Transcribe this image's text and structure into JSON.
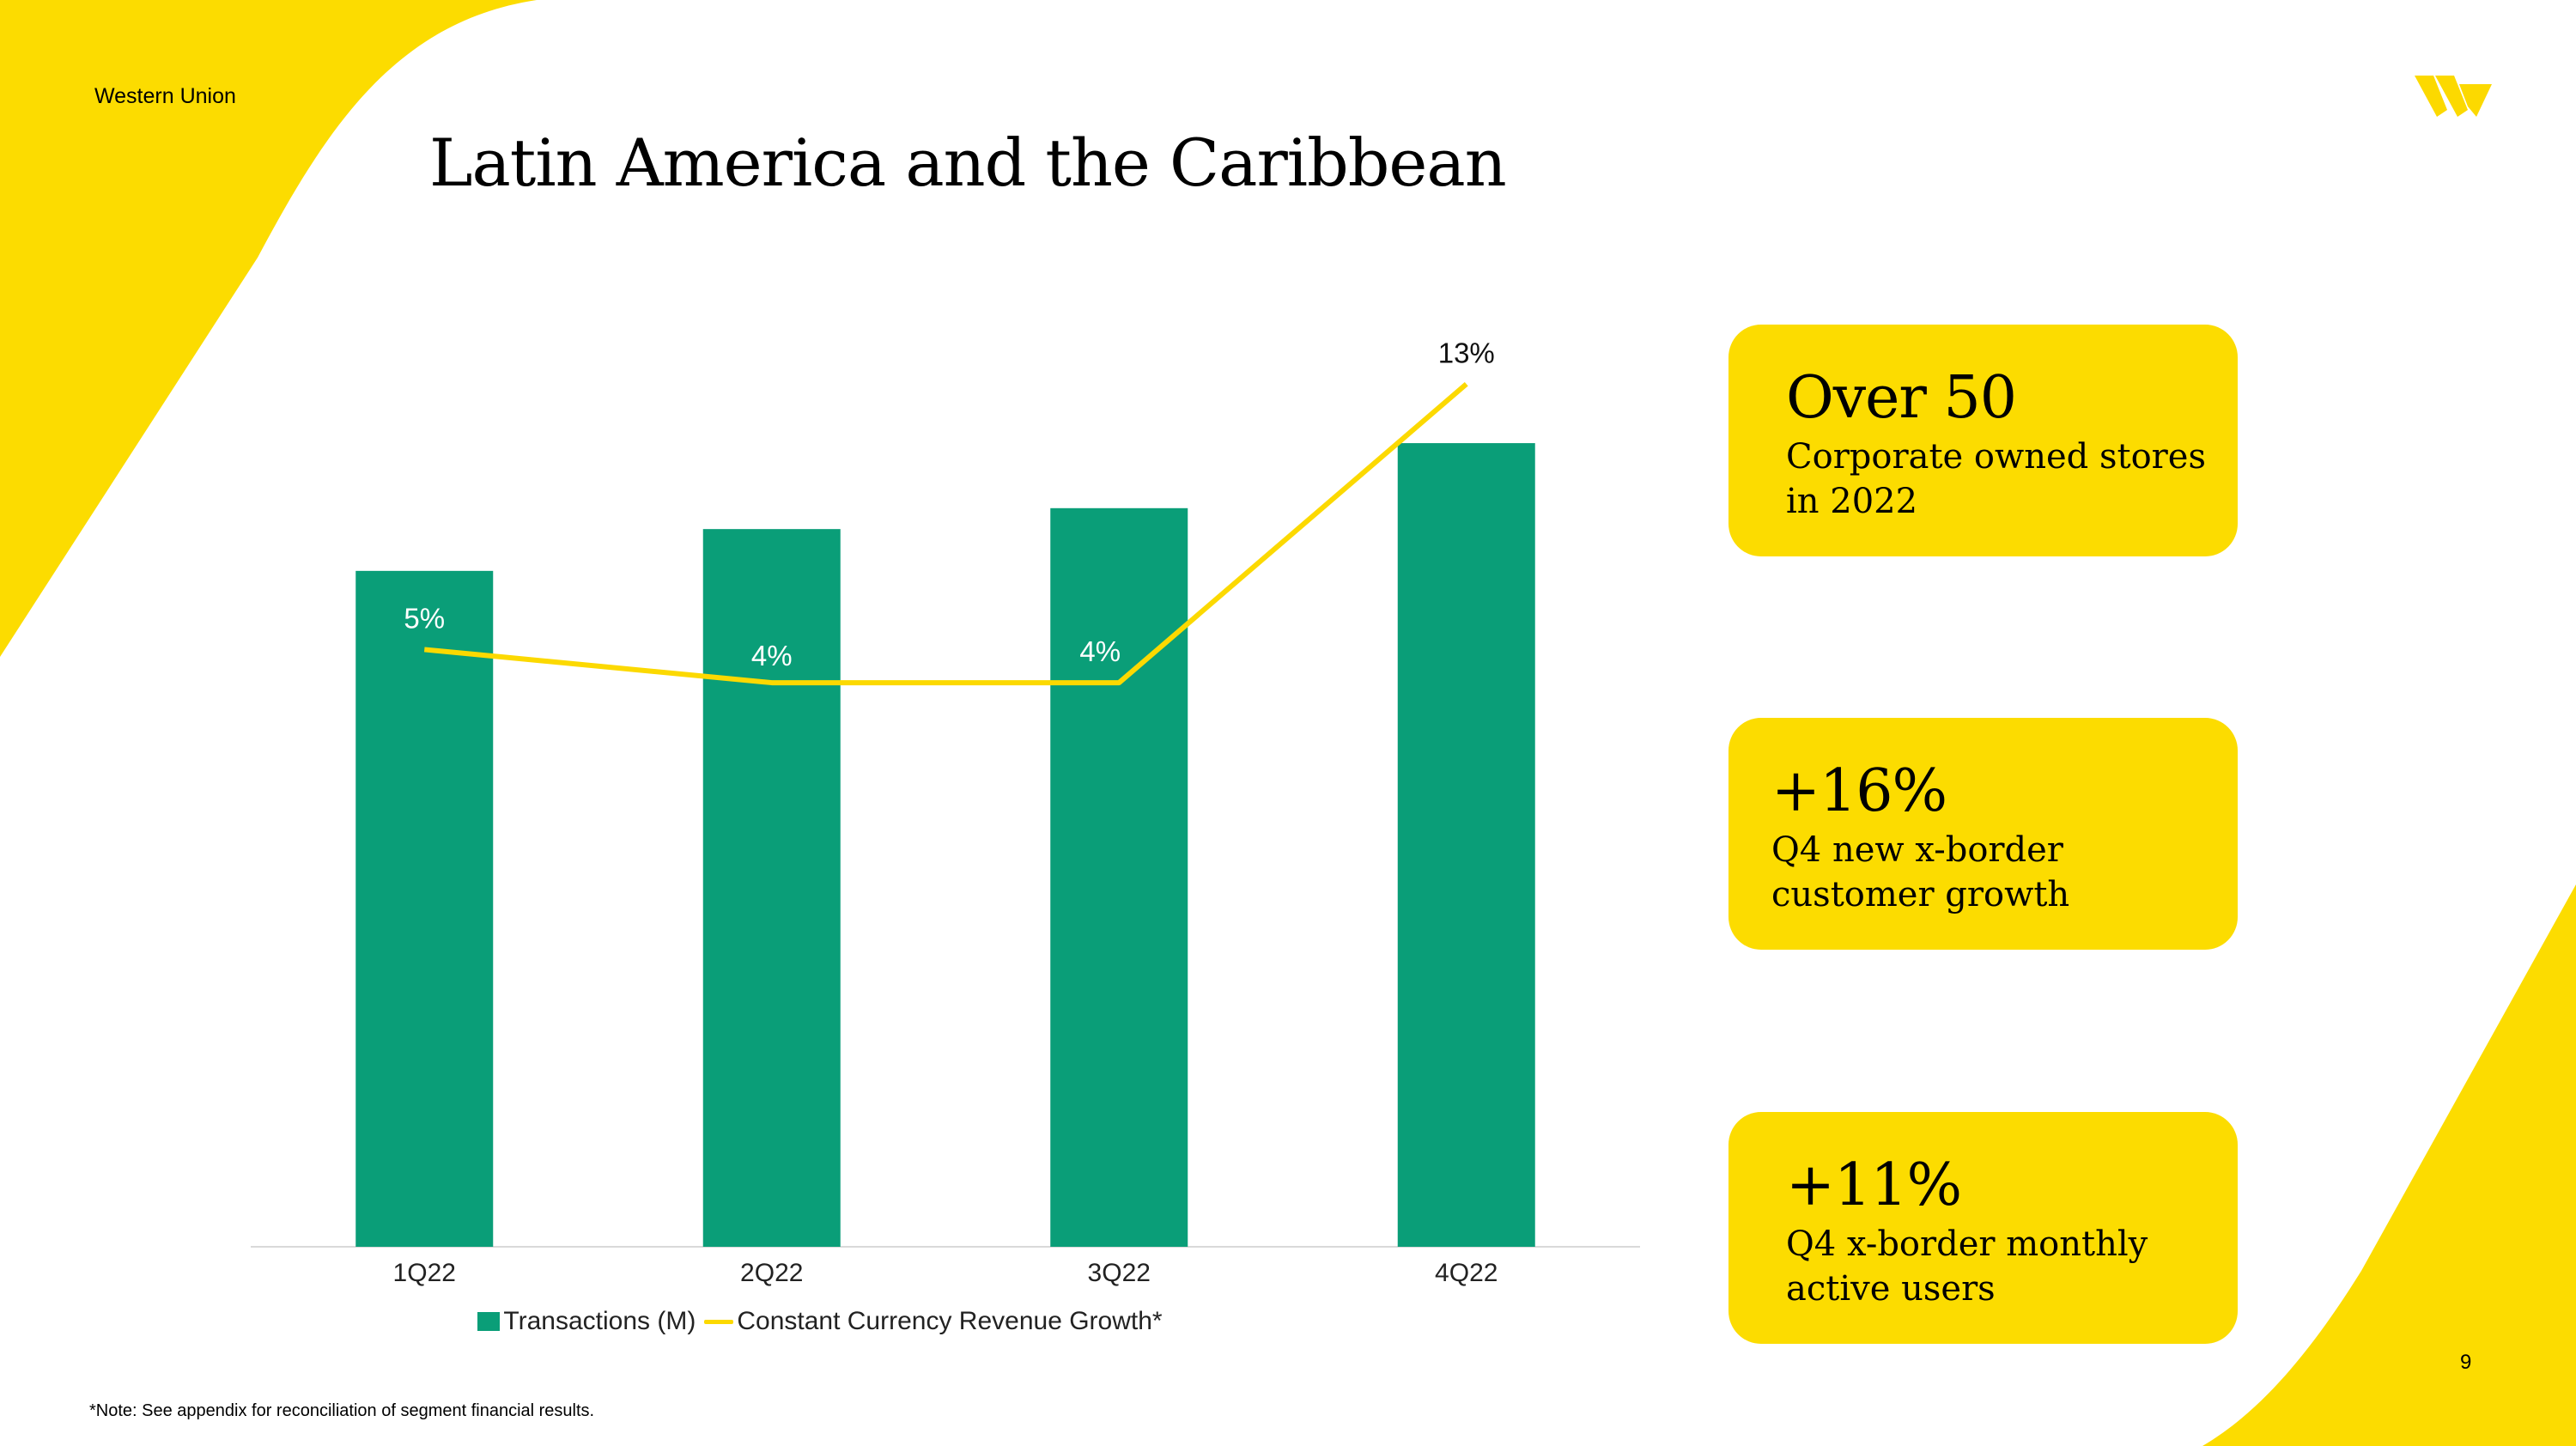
{
  "header": {
    "brand": "Western Union",
    "title": "Latin America and the Caribbean"
  },
  "logo": {
    "name": "western-union-logo",
    "color": "#fcd900"
  },
  "colors": {
    "accent_yellow": "#fcdc00",
    "bar_green": "#0a9e78",
    "line_yellow": "#fcd900"
  },
  "chart_data": {
    "type": "bar",
    "title": "",
    "categories": [
      "1Q22",
      "2Q22",
      "3Q22",
      "4Q22"
    ],
    "series": [
      {
        "name": "Transactions (M)",
        "type": "bar",
        "values": [
          29.1,
          30.9,
          31.8,
          34.6
        ]
      },
      {
        "name": "Constant Currency Revenue Growth*",
        "type": "line",
        "values": [
          5,
          4,
          4,
          13
        ],
        "labels": [
          "5%",
          "4%",
          "4%",
          "13%"
        ]
      }
    ],
    "bar_ylim": [
      0,
      40
    ],
    "line_ylim": [
      -13,
      15
    ],
    "legend": [
      "Transactions (M)",
      "Constant Currency Revenue Growth*"
    ]
  },
  "cards": [
    {
      "headline": "Over 50",
      "text": "Corporate owned stores in 2022"
    },
    {
      "headline": "+16%",
      "text": "Q4 new x-border customer growth"
    },
    {
      "headline": "+11%",
      "text": "Q4 x-border monthly active users"
    }
  ],
  "footer": {
    "footnote": "*Note: See appendix for reconciliation of segment financial results.",
    "page_number": "9"
  }
}
